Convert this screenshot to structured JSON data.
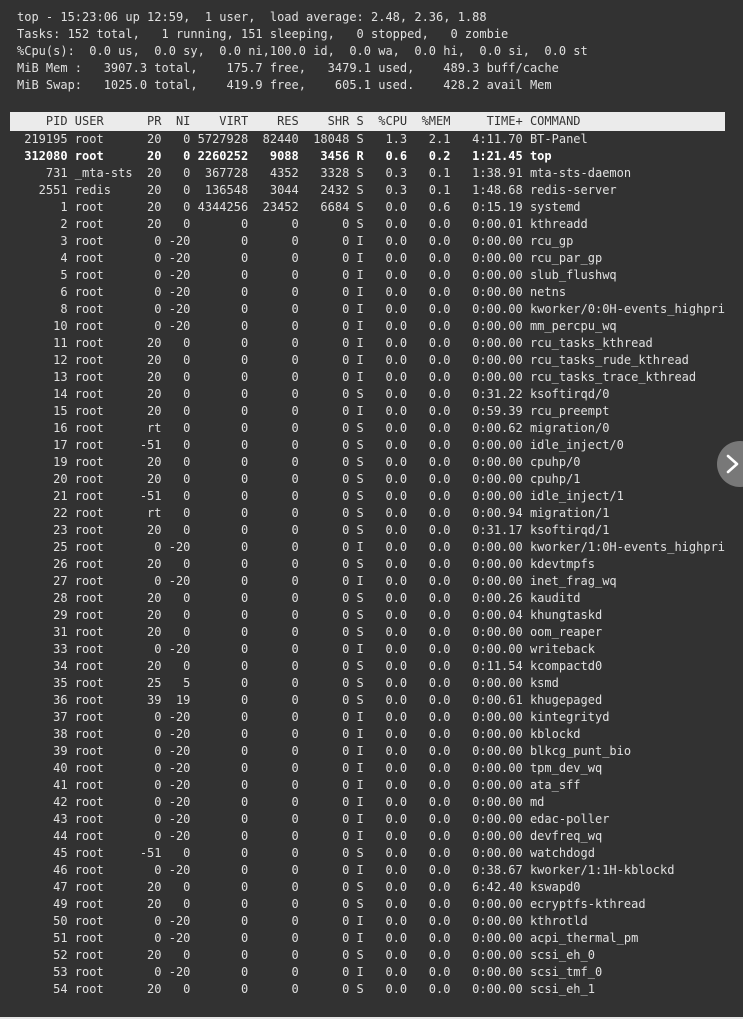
{
  "colors": {
    "background": "#323232",
    "text": "#e0e0e0",
    "header_bg": "#ebebeb",
    "header_text": "#323232",
    "highlight_text": "#ffffff",
    "next_button_bg": "#787878",
    "next_button_icon": "#ffffff",
    "bottom_edge": "#e6e6e6"
  },
  "terminal": {
    "summary_lines": [
      "top - 15:23:06 up 12:59,  1 user,  load average: 2.48, 2.36, 1.88",
      "Tasks: 152 total,   1 running, 151 sleeping,   0 stopped,   0 zombie",
      "%Cpu(s):  0.0 us,  0.0 sy,  0.0 ni,100.0 id,  0.0 wa,  0.0 hi,  0.0 si,  0.0 st",
      "MiB Mem :   3907.3 total,    175.7 free,   3479.1 used,    489.3 buff/cache",
      "MiB Swap:   1025.0 total,    419.9 free,    605.1 used.    428.2 avail Mem"
    ],
    "table": {
      "columns": [
        {
          "label": "PID",
          "width": 7,
          "align": "right"
        },
        {
          "label": "USER",
          "width": 8,
          "align": "left"
        },
        {
          "label": "PR",
          "width": 3,
          "align": "right"
        },
        {
          "label": "NI",
          "width": 3,
          "align": "right"
        },
        {
          "label": "VIRT",
          "width": 7,
          "align": "right"
        },
        {
          "label": "RES",
          "width": 6,
          "align": "right"
        },
        {
          "label": "SHR",
          "width": 6,
          "align": "right"
        },
        {
          "label": "S",
          "width": 1,
          "align": "right"
        },
        {
          "label": "%CPU",
          "width": 5,
          "align": "right"
        },
        {
          "label": "%MEM",
          "width": 5,
          "align": "right"
        },
        {
          "label": "TIME+",
          "width": 9,
          "align": "right"
        },
        {
          "label": "COMMAND",
          "width": 0,
          "align": "left"
        }
      ],
      "highlighted_pid": "312080",
      "processes": [
        [
          "219195",
          "root",
          "20",
          "0",
          "5727928",
          "82440",
          "18048",
          "S",
          "1.3",
          "2.1",
          "4:11.70",
          "BT-Panel"
        ],
        [
          "312080",
          "root",
          "20",
          "0",
          "2260252",
          "9088",
          "3456",
          "R",
          "0.6",
          "0.2",
          "1:21.45",
          "top"
        ],
        [
          "731",
          "_mta-sts",
          "20",
          "0",
          "367728",
          "4352",
          "3328",
          "S",
          "0.3",
          "0.1",
          "1:38.91",
          "mta-sts-daemon"
        ],
        [
          "2551",
          "redis",
          "20",
          "0",
          "136548",
          "3044",
          "2432",
          "S",
          "0.3",
          "0.1",
          "1:48.68",
          "redis-server"
        ],
        [
          "1",
          "root",
          "20",
          "0",
          "4344256",
          "23452",
          "6684",
          "S",
          "0.0",
          "0.6",
          "0:15.19",
          "systemd"
        ],
        [
          "2",
          "root",
          "20",
          "0",
          "0",
          "0",
          "0",
          "S",
          "0.0",
          "0.0",
          "0:00.01",
          "kthreadd"
        ],
        [
          "3",
          "root",
          "0",
          "-20",
          "0",
          "0",
          "0",
          "I",
          "0.0",
          "0.0",
          "0:00.00",
          "rcu_gp"
        ],
        [
          "4",
          "root",
          "0",
          "-20",
          "0",
          "0",
          "0",
          "I",
          "0.0",
          "0.0",
          "0:00.00",
          "rcu_par_gp"
        ],
        [
          "5",
          "root",
          "0",
          "-20",
          "0",
          "0",
          "0",
          "I",
          "0.0",
          "0.0",
          "0:00.00",
          "slub_flushwq"
        ],
        [
          "6",
          "root",
          "0",
          "-20",
          "0",
          "0",
          "0",
          "I",
          "0.0",
          "0.0",
          "0:00.00",
          "netns"
        ],
        [
          "8",
          "root",
          "0",
          "-20",
          "0",
          "0",
          "0",
          "I",
          "0.0",
          "0.0",
          "0:00.00",
          "kworker/0:0H-events_highpri"
        ],
        [
          "10",
          "root",
          "0",
          "-20",
          "0",
          "0",
          "0",
          "I",
          "0.0",
          "0.0",
          "0:00.00",
          "mm_percpu_wq"
        ],
        [
          "11",
          "root",
          "20",
          "0",
          "0",
          "0",
          "0",
          "I",
          "0.0",
          "0.0",
          "0:00.00",
          "rcu_tasks_kthread"
        ],
        [
          "12",
          "root",
          "20",
          "0",
          "0",
          "0",
          "0",
          "I",
          "0.0",
          "0.0",
          "0:00.00",
          "rcu_tasks_rude_kthread"
        ],
        [
          "13",
          "root",
          "20",
          "0",
          "0",
          "0",
          "0",
          "I",
          "0.0",
          "0.0",
          "0:00.00",
          "rcu_tasks_trace_kthread"
        ],
        [
          "14",
          "root",
          "20",
          "0",
          "0",
          "0",
          "0",
          "S",
          "0.0",
          "0.0",
          "0:31.22",
          "ksoftirqd/0"
        ],
        [
          "15",
          "root",
          "20",
          "0",
          "0",
          "0",
          "0",
          "I",
          "0.0",
          "0.0",
          "0:59.39",
          "rcu_preempt"
        ],
        [
          "16",
          "root",
          "rt",
          "0",
          "0",
          "0",
          "0",
          "S",
          "0.0",
          "0.0",
          "0:00.62",
          "migration/0"
        ],
        [
          "17",
          "root",
          "-51",
          "0",
          "0",
          "0",
          "0",
          "S",
          "0.0",
          "0.0",
          "0:00.00",
          "idle_inject/0"
        ],
        [
          "19",
          "root",
          "20",
          "0",
          "0",
          "0",
          "0",
          "S",
          "0.0",
          "0.0",
          "0:00.00",
          "cpuhp/0"
        ],
        [
          "20",
          "root",
          "20",
          "0",
          "0",
          "0",
          "0",
          "S",
          "0.0",
          "0.0",
          "0:00.00",
          "cpuhp/1"
        ],
        [
          "21",
          "root",
          "-51",
          "0",
          "0",
          "0",
          "0",
          "S",
          "0.0",
          "0.0",
          "0:00.00",
          "idle_inject/1"
        ],
        [
          "22",
          "root",
          "rt",
          "0",
          "0",
          "0",
          "0",
          "S",
          "0.0",
          "0.0",
          "0:00.94",
          "migration/1"
        ],
        [
          "23",
          "root",
          "20",
          "0",
          "0",
          "0",
          "0",
          "S",
          "0.0",
          "0.0",
          "0:31.17",
          "ksoftirqd/1"
        ],
        [
          "25",
          "root",
          "0",
          "-20",
          "0",
          "0",
          "0",
          "I",
          "0.0",
          "0.0",
          "0:00.00",
          "kworker/1:0H-events_highpri"
        ],
        [
          "26",
          "root",
          "20",
          "0",
          "0",
          "0",
          "0",
          "S",
          "0.0",
          "0.0",
          "0:00.00",
          "kdevtmpfs"
        ],
        [
          "27",
          "root",
          "0",
          "-20",
          "0",
          "0",
          "0",
          "I",
          "0.0",
          "0.0",
          "0:00.00",
          "inet_frag_wq"
        ],
        [
          "28",
          "root",
          "20",
          "0",
          "0",
          "0",
          "0",
          "S",
          "0.0",
          "0.0",
          "0:00.26",
          "kauditd"
        ],
        [
          "29",
          "root",
          "20",
          "0",
          "0",
          "0",
          "0",
          "S",
          "0.0",
          "0.0",
          "0:00.04",
          "khungtaskd"
        ],
        [
          "31",
          "root",
          "20",
          "0",
          "0",
          "0",
          "0",
          "S",
          "0.0",
          "0.0",
          "0:00.00",
          "oom_reaper"
        ],
        [
          "33",
          "root",
          "0",
          "-20",
          "0",
          "0",
          "0",
          "I",
          "0.0",
          "0.0",
          "0:00.00",
          "writeback"
        ],
        [
          "34",
          "root",
          "20",
          "0",
          "0",
          "0",
          "0",
          "S",
          "0.0",
          "0.0",
          "0:11.54",
          "kcompactd0"
        ],
        [
          "35",
          "root",
          "25",
          "5",
          "0",
          "0",
          "0",
          "S",
          "0.0",
          "0.0",
          "0:00.00",
          "ksmd"
        ],
        [
          "36",
          "root",
          "39",
          "19",
          "0",
          "0",
          "0",
          "S",
          "0.0",
          "0.0",
          "0:00.61",
          "khugepaged"
        ],
        [
          "37",
          "root",
          "0",
          "-20",
          "0",
          "0",
          "0",
          "I",
          "0.0",
          "0.0",
          "0:00.00",
          "kintegrityd"
        ],
        [
          "38",
          "root",
          "0",
          "-20",
          "0",
          "0",
          "0",
          "I",
          "0.0",
          "0.0",
          "0:00.00",
          "kblockd"
        ],
        [
          "39",
          "root",
          "0",
          "-20",
          "0",
          "0",
          "0",
          "I",
          "0.0",
          "0.0",
          "0:00.00",
          "blkcg_punt_bio"
        ],
        [
          "40",
          "root",
          "0",
          "-20",
          "0",
          "0",
          "0",
          "I",
          "0.0",
          "0.0",
          "0:00.00",
          "tpm_dev_wq"
        ],
        [
          "41",
          "root",
          "0",
          "-20",
          "0",
          "0",
          "0",
          "I",
          "0.0",
          "0.0",
          "0:00.00",
          "ata_sff"
        ],
        [
          "42",
          "root",
          "0",
          "-20",
          "0",
          "0",
          "0",
          "I",
          "0.0",
          "0.0",
          "0:00.00",
          "md"
        ],
        [
          "43",
          "root",
          "0",
          "-20",
          "0",
          "0",
          "0",
          "I",
          "0.0",
          "0.0",
          "0:00.00",
          "edac-poller"
        ],
        [
          "44",
          "root",
          "0",
          "-20",
          "0",
          "0",
          "0",
          "I",
          "0.0",
          "0.0",
          "0:00.00",
          "devfreq_wq"
        ],
        [
          "45",
          "root",
          "-51",
          "0",
          "0",
          "0",
          "0",
          "S",
          "0.0",
          "0.0",
          "0:00.00",
          "watchdogd"
        ],
        [
          "46",
          "root",
          "0",
          "-20",
          "0",
          "0",
          "0",
          "I",
          "0.0",
          "0.0",
          "0:38.67",
          "kworker/1:1H-kblockd"
        ],
        [
          "47",
          "root",
          "20",
          "0",
          "0",
          "0",
          "0",
          "S",
          "0.0",
          "0.0",
          "6:42.40",
          "kswapd0"
        ],
        [
          "49",
          "root",
          "20",
          "0",
          "0",
          "0",
          "0",
          "S",
          "0.0",
          "0.0",
          "0:00.00",
          "ecryptfs-kthread"
        ],
        [
          "50",
          "root",
          "0",
          "-20",
          "0",
          "0",
          "0",
          "I",
          "0.0",
          "0.0",
          "0:00.00",
          "kthrotld"
        ],
        [
          "51",
          "root",
          "0",
          "-20",
          "0",
          "0",
          "0",
          "I",
          "0.0",
          "0.0",
          "0:00.00",
          "acpi_thermal_pm"
        ],
        [
          "52",
          "root",
          "20",
          "0",
          "0",
          "0",
          "0",
          "S",
          "0.0",
          "0.0",
          "0:00.00",
          "scsi_eh_0"
        ],
        [
          "53",
          "root",
          "0",
          "-20",
          "0",
          "0",
          "0",
          "I",
          "0.0",
          "0.0",
          "0:00.00",
          "scsi_tmf_0"
        ],
        [
          "54",
          "root",
          "20",
          "0",
          "0",
          "0",
          "0",
          "S",
          "0.0",
          "0.0",
          "0:00.00",
          "scsi_eh_1"
        ]
      ]
    }
  },
  "overlay": {
    "next_button": {
      "icon": "chevron-right"
    }
  }
}
